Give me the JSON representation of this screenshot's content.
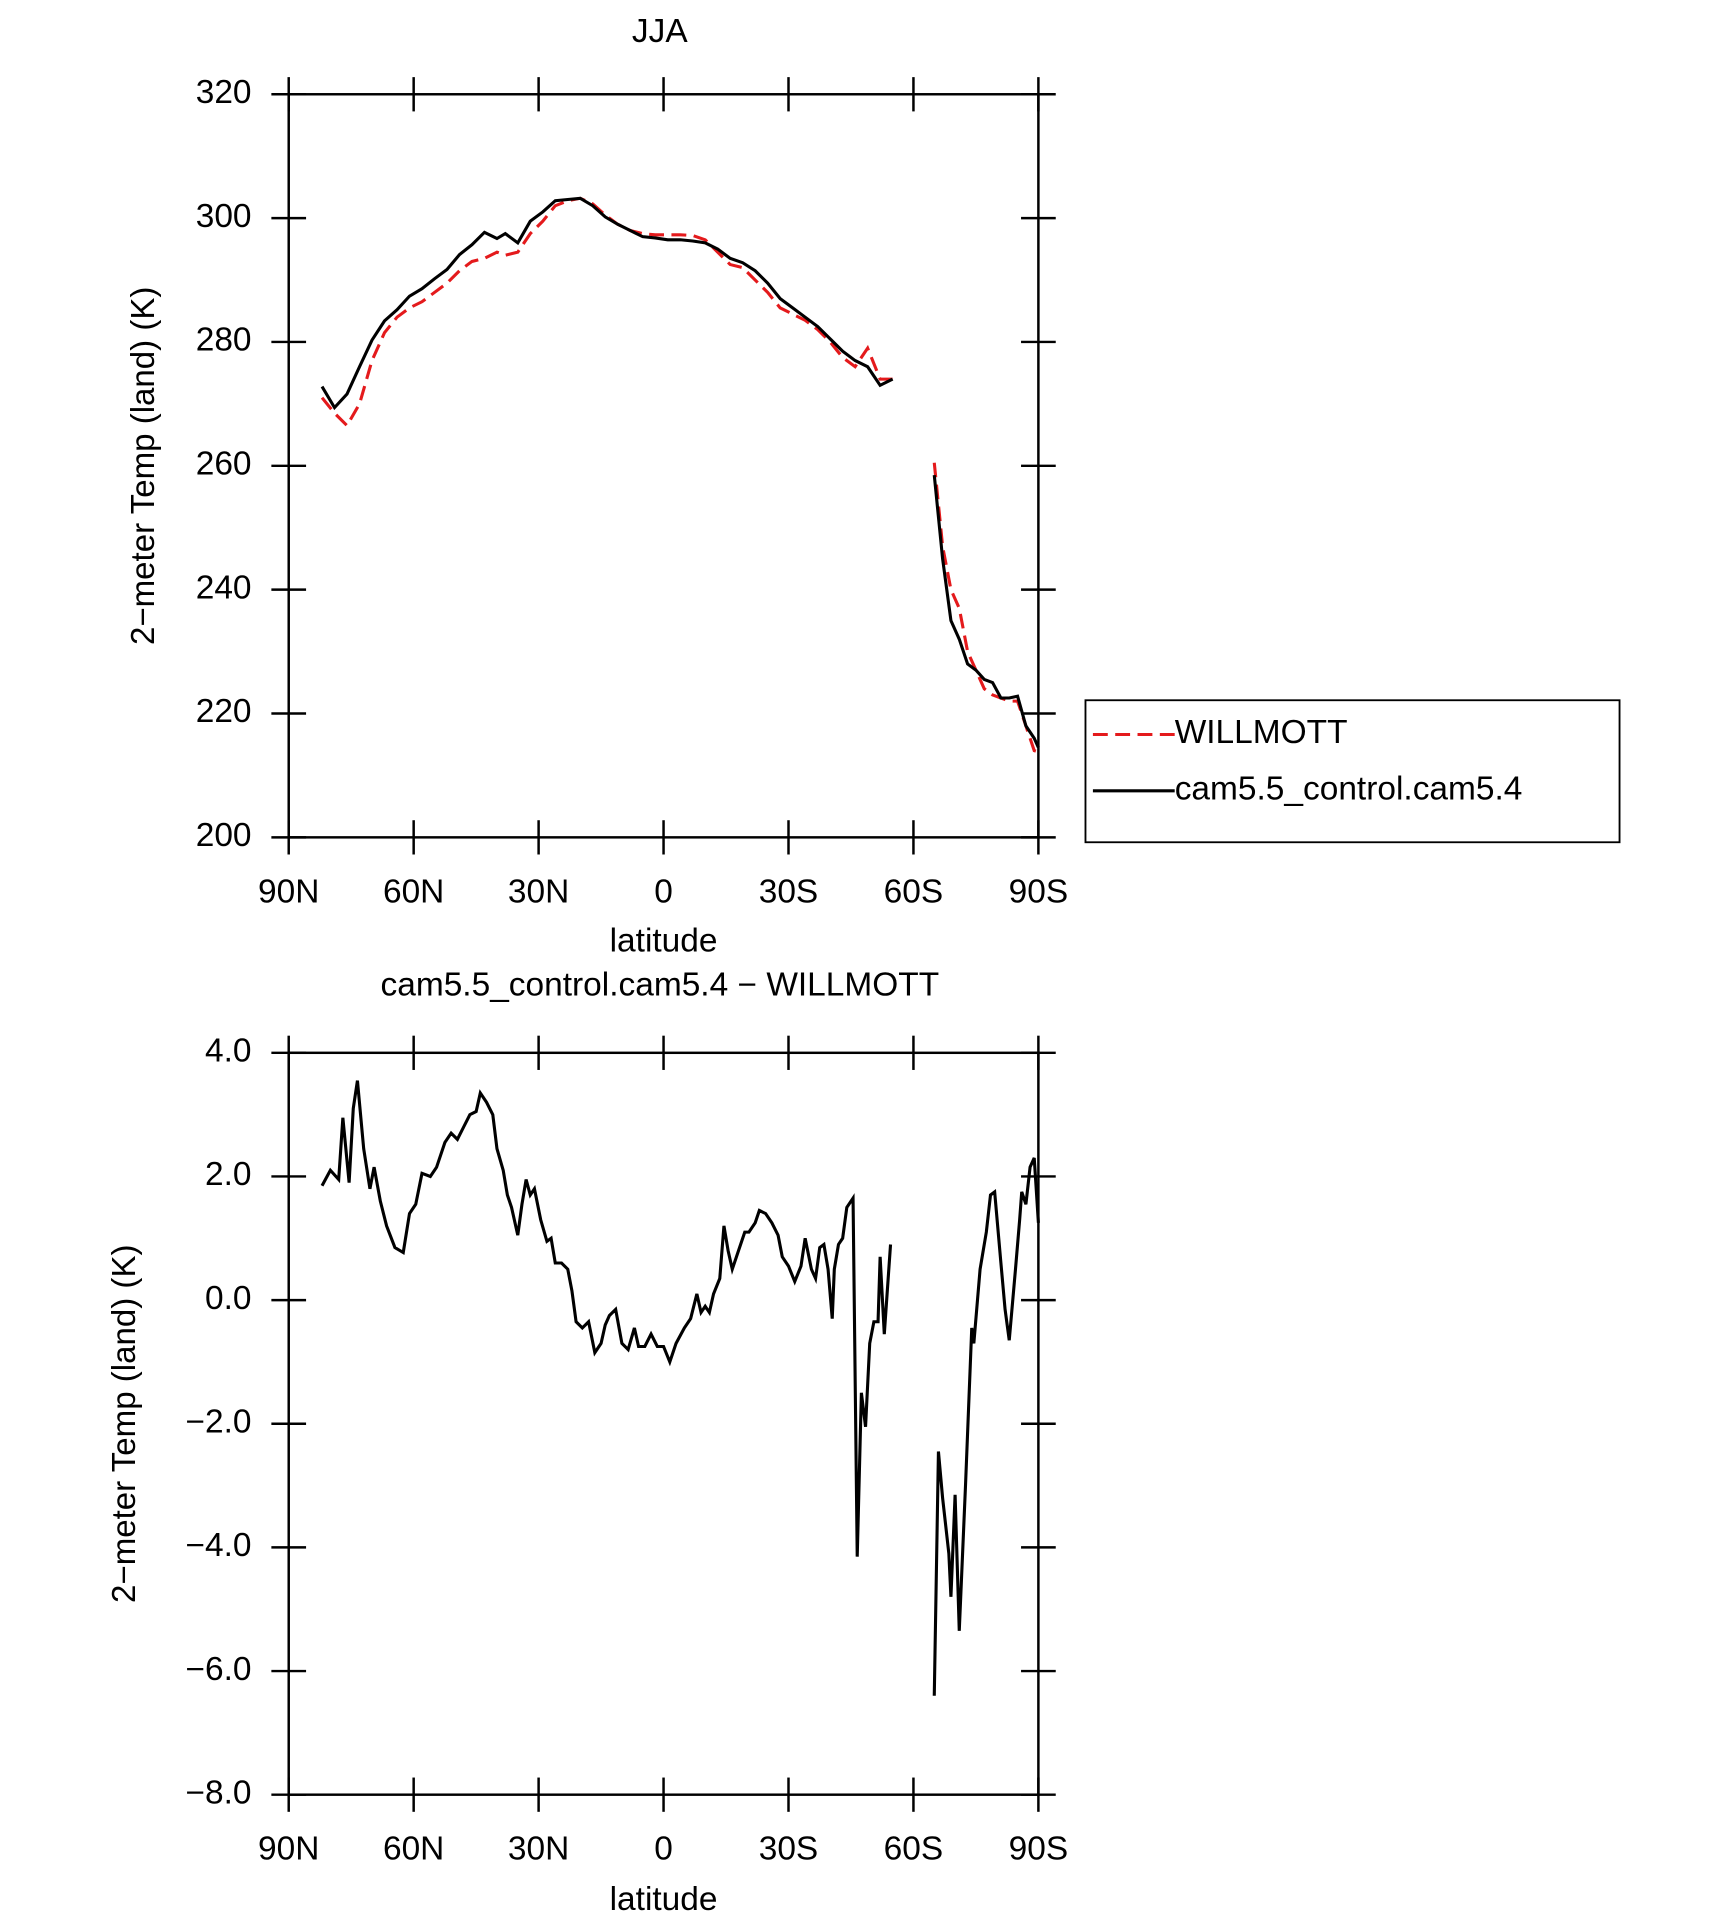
{
  "chart_data": [
    {
      "type": "line",
      "title": "JJA",
      "x_label": "latitude",
      "y_label": "2−meter Temp (land) (K)",
      "x": [
        82,
        79,
        76,
        73,
        70,
        67,
        64,
        61,
        58,
        55,
        52,
        49,
        46,
        43,
        40,
        38,
        35,
        32,
        29,
        26,
        23,
        20,
        17,
        14,
        11,
        8,
        5,
        2,
        -1,
        -4,
        -7,
        -10,
        -13,
        -16,
        -19,
        -22,
        -25,
        -28,
        -31,
        -34,
        -37,
        -40,
        -43,
        -46,
        -49,
        -52,
        -55,
        -60,
        -65,
        -67,
        -69,
        -71,
        -73,
        -75,
        -77,
        -79,
        -81,
        -83,
        -85,
        -87,
        -89,
        -90
      ],
      "series": [
        {
          "name": "WILLMOTT",
          "color": "#e41a1c",
          "style": "dashed",
          "values": [
            271,
            268.5,
            266.5,
            270,
            277,
            281.5,
            284,
            285.5,
            286.5,
            288,
            289.5,
            291.5,
            293,
            293.5,
            294.5,
            294,
            294.5,
            297.5,
            299.5,
            302,
            302.8,
            303.2,
            302.3,
            300.5,
            299,
            298,
            297.5,
            297.3,
            297.3,
            297.3,
            297.2,
            296.5,
            294.5,
            292.5,
            292,
            290,
            288,
            285.5,
            284.5,
            283.5,
            282,
            280,
            277.5,
            276,
            279,
            274,
            274,
            null,
            260.5,
            247,
            240,
            237,
            230,
            227,
            224,
            223,
            222.5,
            222,
            222,
            218,
            214,
            213.8
          ]
        },
        {
          "name": "cam5.5_control.cam5.4",
          "color": "#000000",
          "style": "solid",
          "values": [
            272.8,
            269.4,
            271.6,
            276,
            280.3,
            283.4,
            285.2,
            287.4,
            288.6,
            290.2,
            291.7,
            294.1,
            295.7,
            297.7,
            296.7,
            297.5,
            296,
            299.5,
            301,
            302.8,
            303,
            303.2,
            302,
            300.2,
            299,
            298,
            297,
            296.8,
            296.5,
            296.5,
            296.3,
            296,
            295,
            293.5,
            292.8,
            291.5,
            289.5,
            287,
            285.5,
            284,
            282.5,
            280.5,
            278.5,
            277,
            276,
            273,
            274,
            null,
            258.5,
            245,
            235,
            232,
            228,
            227,
            225.5,
            225,
            222.5,
            222.5,
            222.8,
            218,
            216,
            214.5
          ]
        }
      ],
      "xlim": [
        90,
        -90
      ],
      "xticks": [
        {
          "value": 90,
          "label": "90N"
        },
        {
          "value": 60,
          "label": "60N"
        },
        {
          "value": 30,
          "label": "30N"
        },
        0,
        {
          "value": -30,
          "label": "30S"
        },
        {
          "value": -60,
          "label": "60S"
        },
        {
          "value": -90,
          "label": "90S"
        }
      ],
      "ylim": [
        200,
        320
      ],
      "yticks": [
        200,
        220,
        240,
        260,
        280,
        300,
        320
      ],
      "legend": "outside right"
    },
    {
      "type": "line",
      "title": "cam5.5_control.cam5.4 − WILLMOTT",
      "x_label": "latitude",
      "y_label": "2−meter Temp (land) (K)",
      "x": [
        82,
        80,
        78,
        77,
        75.5,
        74.5,
        73.5,
        72,
        70.5,
        69.5,
        68,
        66.5,
        64.5,
        62.5,
        61,
        59.5,
        58,
        56,
        54.5,
        52.5,
        51,
        49.5,
        48,
        46.5,
        45,
        44,
        42.5,
        41,
        40,
        38.5,
        37.5,
        36.5,
        35,
        34,
        33,
        32,
        31,
        29.5,
        28,
        27,
        26,
        24.5,
        23,
        22,
        21,
        19.5,
        18,
        16.5,
        15,
        14,
        13,
        11.5,
        10,
        8.5,
        7,
        6,
        4.5,
        3,
        1.5,
        0,
        -1.5,
        -3,
        -5,
        -6.5,
        -8,
        -9,
        -10,
        -11,
        -12,
        -13.5,
        -14.5,
        -15.5,
        -16.5,
        -18,
        -19.5,
        -20.5,
        -22,
        -23,
        -24.5,
        -26,
        -27.5,
        -28.5,
        -30,
        -31.5,
        -33,
        -34,
        -35.5,
        -36.5,
        -37.5,
        -38.5,
        -39.5,
        -40.5,
        -41,
        -42,
        -43,
        -44,
        -45.5,
        -46.5,
        -47.5,
        -48.5,
        -49.5,
        -50.5,
        -51.5,
        -52,
        -53,
        -54.5,
        -60,
        -65,
        -66,
        -67,
        -68.5,
        -69,
        -70,
        -71,
        -72.5,
        -74,
        -74.5,
        -76,
        -77.5,
        -78.5,
        -79.5,
        -81,
        -82,
        -83,
        -84.5,
        -85.5,
        -86,
        -87,
        -88,
        -89,
        -90
      ],
      "series": [
        {
          "color": "#000000",
          "style": "solid",
          "values": [
            1.85,
            2.1,
            1.95,
            2.95,
            1.9,
            3.1,
            3.55,
            2.45,
            1.8,
            2.15,
            1.6,
            1.2,
            0.85,
            0.77,
            1.4,
            1.55,
            2.05,
            2.0,
            2.15,
            2.55,
            2.7,
            2.6,
            2.8,
            3.0,
            3.05,
            3.35,
            3.2,
            3.0,
            2.45,
            2.1,
            1.7,
            1.5,
            1.05,
            1.55,
            1.95,
            1.7,
            1.8,
            1.3,
            0.95,
            1.0,
            0.6,
            0.6,
            0.5,
            0.15,
            -0.35,
            -0.45,
            -0.35,
            -0.85,
            -0.7,
            -0.4,
            -0.25,
            -0.15,
            -0.7,
            -0.8,
            -0.45,
            -0.75,
            -0.75,
            -0.55,
            -0.75,
            -0.75,
            -1.0,
            -0.7,
            -0.45,
            -0.3,
            0.1,
            -0.2,
            -0.1,
            -0.2,
            0.1,
            0.35,
            1.2,
            0.8,
            0.5,
            0.8,
            1.1,
            1.1,
            1.25,
            1.45,
            1.4,
            1.25,
            1.05,
            0.7,
            0.55,
            0.3,
            0.55,
            1.0,
            0.5,
            0.35,
            0.85,
            0.9,
            0.5,
            -0.3,
            0.5,
            0.9,
            1.0,
            1.5,
            1.65,
            -4.15,
            -1.5,
            -2.05,
            -0.7,
            -0.35,
            -0.35,
            0.7,
            -0.55,
            0.9,
            null,
            -6.4,
            -2.45,
            -3.2,
            -4.1,
            -4.8,
            -3.15,
            -5.35,
            -3.0,
            -0.45,
            -0.7,
            0.5,
            1.1,
            1.7,
            1.75,
            0.6,
            -0.15,
            -0.65,
            0.5,
            1.3,
            1.75,
            1.55,
            2.15,
            2.3,
            1.25
          ]
        }
      ],
      "xlim": [
        90,
        -90
      ],
      "xticks": [
        {
          "value": 90,
          "label": "90N"
        },
        {
          "value": 60,
          "label": "60N"
        },
        {
          "value": 30,
          "label": "30N"
        },
        0,
        {
          "value": -30,
          "label": "30S"
        },
        {
          "value": -60,
          "label": "60S"
        },
        {
          "value": -90,
          "label": "90S"
        }
      ],
      "ylim": [
        -8,
        4
      ],
      "yticks": [
        {
          "value": -8,
          "label": "−8.0"
        },
        {
          "value": -6,
          "label": "−6.0"
        },
        {
          "value": -4,
          "label": "−4.0"
        },
        {
          "value": -2,
          "label": "−2.0"
        },
        {
          "value": 0,
          "label": "0.0"
        },
        {
          "value": 2,
          "label": "2.0"
        },
        {
          "value": 4,
          "label": "4.0"
        }
      ]
    }
  ]
}
